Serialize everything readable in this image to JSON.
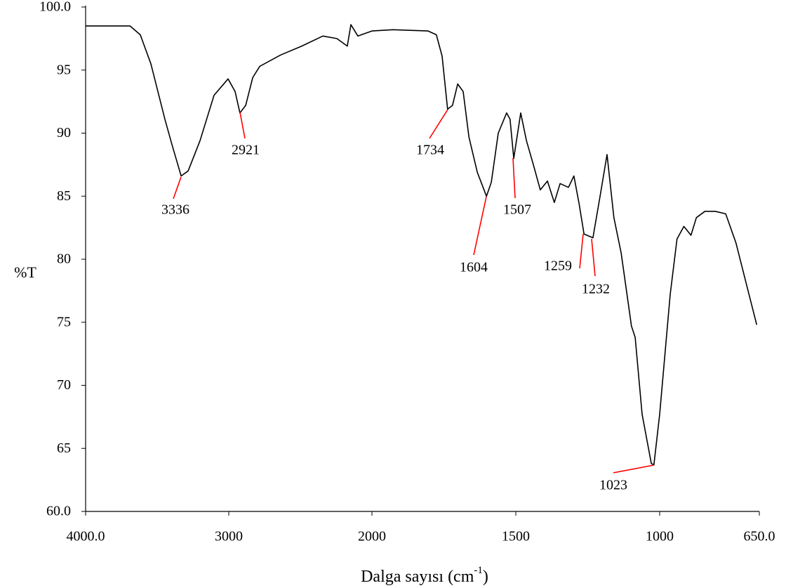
{
  "chart_data": {
    "type": "line",
    "x_label": [
      "Dalga sayısı (cm",
      "-1",
      ")"
    ],
    "y_label": "%T",
    "color": "#000000",
    "annotation_color": "#ff0000",
    "x": [
      4000,
      3690,
      3618,
      3544,
      3446,
      3397,
      3348,
      3333,
      3284,
      3201,
      3103,
      3005,
      2956,
      2922,
      2882,
      2833,
      2784,
      2637,
      2490,
      2343,
      2245,
      2172,
      2147,
      2098,
      2000,
      1927,
      1805,
      1776,
      1756,
      1737,
      1720,
      1702,
      1683,
      1663,
      1634,
      1602,
      1585,
      1561,
      1532,
      1520,
      1507,
      1483,
      1463,
      1439,
      1415,
      1390,
      1366,
      1346,
      1317,
      1298,
      1280,
      1263,
      1232,
      1207,
      1183,
      1159,
      1134,
      1098,
      1085,
      1061,
      1029,
      1020,
      1000,
      963,
      939,
      915,
      890,
      871,
      841,
      805,
      768,
      732,
      695,
      659
    ],
    "values": [
      98.5,
      98.5,
      97.8,
      95.5,
      91.1,
      89.1,
      87.2,
      86.6,
      87.0,
      89.4,
      93.0,
      94.3,
      93.3,
      91.6,
      92.2,
      94.4,
      95.3,
      96.2,
      96.9,
      97.7,
      97.5,
      96.9,
      98.6,
      97.7,
      98.1,
      98.2,
      98.1,
      97.8,
      96.1,
      91.9,
      92.2,
      93.9,
      93.3,
      89.7,
      86.9,
      85.0,
      86.1,
      90.0,
      91.6,
      91.1,
      88.0,
      91.6,
      89.4,
      87.5,
      85.5,
      86.2,
      84.5,
      86.0,
      85.7,
      86.6,
      84.4,
      82.0,
      81.7,
      85.0,
      88.3,
      83.3,
      80.5,
      74.7,
      73.8,
      67.7,
      63.8,
      63.7,
      67.7,
      77.2,
      81.6,
      82.6,
      81.9,
      83.3,
      83.8,
      83.8,
      83.6,
      81.3,
      78.0,
      74.8
    ],
    "xlim": [
      4000,
      650
    ],
    "xticks": [
      {
        "value": 4000,
        "label": "4000.0"
      },
      3000,
      2000,
      1500,
      1000,
      {
        "value": 650,
        "label": "650.0"
      }
    ],
    "ylim": [
      60,
      100
    ],
    "yticks": [
      {
        "value": 60,
        "label": "60.0"
      },
      65,
      70,
      75,
      80,
      85,
      90,
      95,
      {
        "value": 100,
        "label": "100.0"
      }
    ],
    "peak_labels": [
      3336,
      2921,
      1734,
      1604,
      1507,
      1259,
      1232,
      1023
    ]
  }
}
